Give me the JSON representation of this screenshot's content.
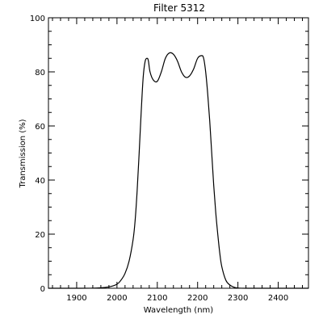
{
  "chart_data": {
    "type": "line",
    "title": "Filter 5312",
    "xlabel": "Wavelength (nm)",
    "ylabel": "Transmission (%)",
    "xlim": [
      1830,
      2475
    ],
    "ylim": [
      0,
      100
    ],
    "grid": false,
    "x_ticks": [
      1900,
      2000,
      2100,
      2200,
      2300,
      2400
    ],
    "y_ticks": [
      0,
      20,
      40,
      60,
      80,
      100
    ],
    "x_tick_labels": [
      "1900",
      "2000",
      "2100",
      "2200",
      "2300",
      "2400"
    ],
    "y_tick_labels": [
      "0",
      "20",
      "40",
      "60",
      "80",
      "100"
    ],
    "series": [
      {
        "color": "#000000",
        "x": [
          1830,
          1900,
          1950,
          1980,
          2000,
          2010,
          2020,
          2030,
          2040,
          2045,
          2050,
          2055,
          2060,
          2065,
          2070,
          2075,
          2078,
          2082,
          2090,
          2100,
          2110,
          2120,
          2130,
          2140,
          2150,
          2160,
          2170,
          2180,
          2190,
          2200,
          2210,
          2215,
          2220,
          2225,
          2230,
          2235,
          2240,
          2245,
          2250,
          2255,
          2260,
          2270,
          2280,
          2290,
          2300,
          2320,
          2350,
          2400,
          2475
        ],
        "y": [
          0,
          0,
          0.1,
          0.5,
          1.5,
          3,
          5.5,
          10,
          18,
          25,
          36,
          50,
          65,
          78,
          84,
          85,
          84,
          80,
          77,
          76.5,
          80,
          85,
          87,
          86.5,
          84,
          80,
          78,
          78.5,
          81,
          85,
          86,
          85,
          80,
          72,
          62,
          50,
          38,
          28,
          20,
          13,
          8,
          3,
          1.2,
          0.4,
          0.1,
          0,
          0,
          0,
          0
        ]
      }
    ]
  }
}
